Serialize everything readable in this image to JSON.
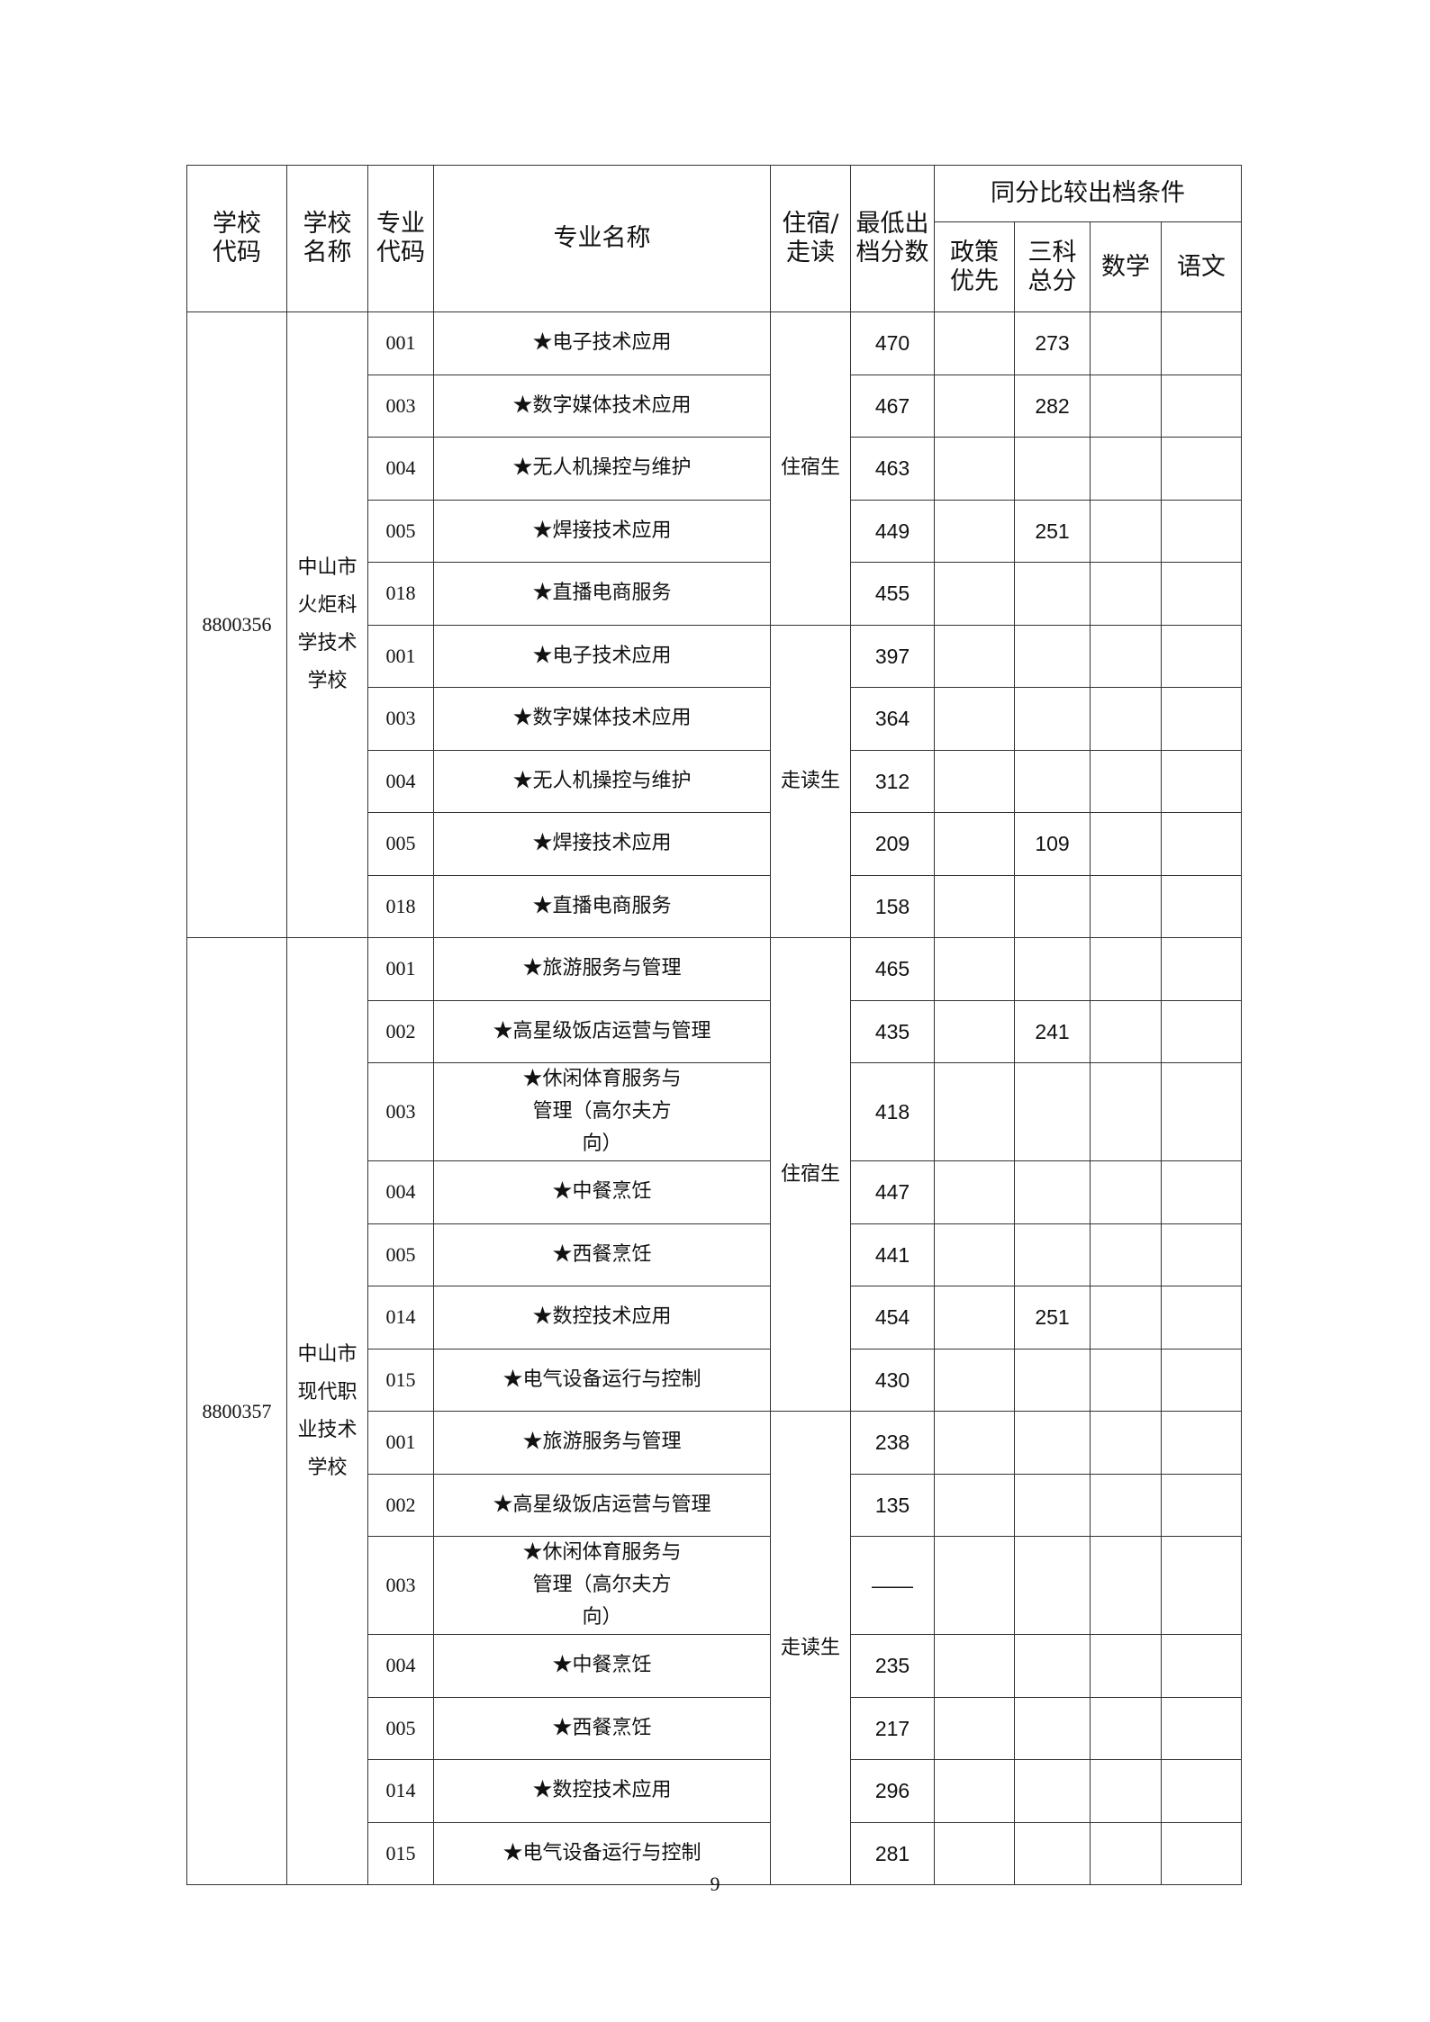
{
  "header": {
    "school_code": "学校代码",
    "school_name": "学校名称",
    "major_code": "专业代码",
    "major_name": "专业名称",
    "boarding": "住宿/走读",
    "min_score": "最低出档分数",
    "tie_break": "同分比较出档条件",
    "policy": "政策优先",
    "three_total": "三科总分",
    "math": "数学",
    "chinese": "语文"
  },
  "schools": [
    {
      "code": "8800356",
      "name": "中山市火炬科学技术学校",
      "groups": [
        {
          "type": "住宿生",
          "rows": [
            {
              "code": "001",
              "major": "★电子技术应用",
              "min": "470",
              "policy": "",
              "total": "273",
              "math": "",
              "chinese": ""
            },
            {
              "code": "003",
              "major": "★数字媒体技术应用",
              "min": "467",
              "policy": "",
              "total": "282",
              "math": "",
              "chinese": ""
            },
            {
              "code": "004",
              "major": "★无人机操控与维护",
              "min": "463",
              "policy": "",
              "total": "",
              "math": "",
              "chinese": ""
            },
            {
              "code": "005",
              "major": "★焊接技术应用",
              "min": "449",
              "policy": "",
              "total": "251",
              "math": "",
              "chinese": ""
            },
            {
              "code": "018",
              "major": "★直播电商服务",
              "min": "455",
              "policy": "",
              "total": "",
              "math": "",
              "chinese": ""
            }
          ]
        },
        {
          "type": "走读生",
          "rows": [
            {
              "code": "001",
              "major": "★电子技术应用",
              "min": "397",
              "policy": "",
              "total": "",
              "math": "",
              "chinese": ""
            },
            {
              "code": "003",
              "major": "★数字媒体技术应用",
              "min": "364",
              "policy": "",
              "total": "",
              "math": "",
              "chinese": ""
            },
            {
              "code": "004",
              "major": "★无人机操控与维护",
              "min": "312",
              "policy": "",
              "total": "",
              "math": "",
              "chinese": ""
            },
            {
              "code": "005",
              "major": "★焊接技术应用",
              "min": "209",
              "policy": "",
              "total": "109",
              "math": "",
              "chinese": ""
            },
            {
              "code": "018",
              "major": "★直播电商服务",
              "min": "158",
              "policy": "",
              "total": "",
              "math": "",
              "chinese": ""
            }
          ]
        }
      ]
    },
    {
      "code": "8800357",
      "name": "中山市现代职业技术学校",
      "groups": [
        {
          "type": "住宿生",
          "rows": [
            {
              "code": "001",
              "major": "★旅游服务与管理",
              "min": "465",
              "policy": "",
              "total": "",
              "math": "",
              "chinese": ""
            },
            {
              "code": "002",
              "major": "★高星级饭店运营与管理",
              "min": "435",
              "policy": "",
              "total": "241",
              "math": "",
              "chinese": ""
            },
            {
              "code": "003",
              "major": "★休闲体育服务与管理（高尔夫方向）",
              "min": "418",
              "policy": "",
              "total": "",
              "math": "",
              "chinese": ""
            },
            {
              "code": "004",
              "major": "★中餐烹饪",
              "min": "447",
              "policy": "",
              "total": "",
              "math": "",
              "chinese": ""
            },
            {
              "code": "005",
              "major": "★西餐烹饪",
              "min": "441",
              "policy": "",
              "total": "",
              "math": "",
              "chinese": ""
            },
            {
              "code": "014",
              "major": "★数控技术应用",
              "min": "454",
              "policy": "",
              "total": "251",
              "math": "",
              "chinese": ""
            },
            {
              "code": "015",
              "major": "★电气设备运行与控制",
              "min": "430",
              "policy": "",
              "total": "",
              "math": "",
              "chinese": ""
            }
          ]
        },
        {
          "type": "走读生",
          "rows": [
            {
              "code": "001",
              "major": "★旅游服务与管理",
              "min": "238",
              "policy": "",
              "total": "",
              "math": "",
              "chinese": ""
            },
            {
              "code": "002",
              "major": "★高星级饭店运营与管理",
              "min": "135",
              "policy": "",
              "total": "",
              "math": "",
              "chinese": ""
            },
            {
              "code": "003",
              "major": "★休闲体育服务与管理（高尔夫方向）",
              "min": "——",
              "policy": "",
              "total": "",
              "math": "",
              "chinese": ""
            },
            {
              "code": "004",
              "major": "★中餐烹饪",
              "min": "235",
              "policy": "",
              "total": "",
              "math": "",
              "chinese": ""
            },
            {
              "code": "005",
              "major": "★西餐烹饪",
              "min": "217",
              "policy": "",
              "total": "",
              "math": "",
              "chinese": ""
            },
            {
              "code": "014",
              "major": "★数控技术应用",
              "min": "296",
              "policy": "",
              "total": "",
              "math": "",
              "chinese": ""
            },
            {
              "code": "015",
              "major": "★电气设备运行与控制",
              "min": "281",
              "policy": "",
              "total": "",
              "math": "",
              "chinese": ""
            }
          ]
        }
      ]
    }
  ],
  "page_number": "9"
}
